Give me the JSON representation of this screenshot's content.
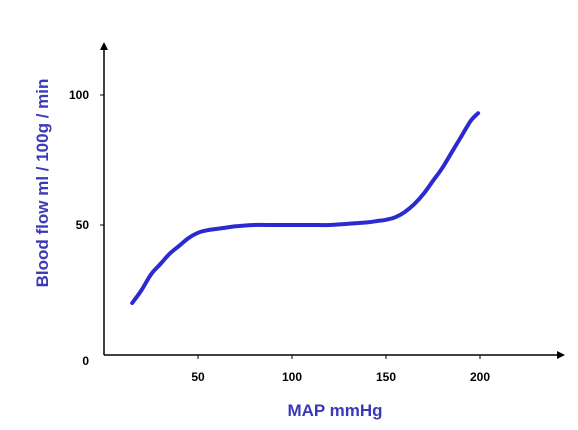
{
  "chart_data": {
    "type": "line",
    "xlabel": "MAP  mmHg",
    "ylabel": "Blood flow  ml / 100g / min",
    "xlim": [
      0,
      240
    ],
    "ylim": [
      0,
      115
    ],
    "x_ticks": [
      50,
      100,
      150,
      200
    ],
    "y_ticks": [
      0,
      50,
      100
    ],
    "grid": false,
    "colors": {
      "line": "#2a2ad0",
      "axis_label": "#3a3ab8",
      "axis": "#000000"
    },
    "series": [
      {
        "x": [
          15,
          20,
          25,
          30,
          35,
          40,
          45,
          50,
          55,
          60,
          65,
          70,
          80,
          90,
          100,
          110,
          120,
          130,
          140,
          145,
          150,
          155,
          160,
          165,
          170,
          175,
          180,
          185,
          190,
          195,
          199
        ],
        "y": [
          20,
          25,
          31,
          35,
          39,
          42,
          45,
          47,
          48,
          48.5,
          49,
          49.5,
          50,
          50,
          50,
          50,
          50,
          50.5,
          51,
          51.5,
          52,
          53,
          55,
          58,
          62,
          67,
          72,
          78,
          84,
          90,
          93
        ]
      }
    ]
  }
}
